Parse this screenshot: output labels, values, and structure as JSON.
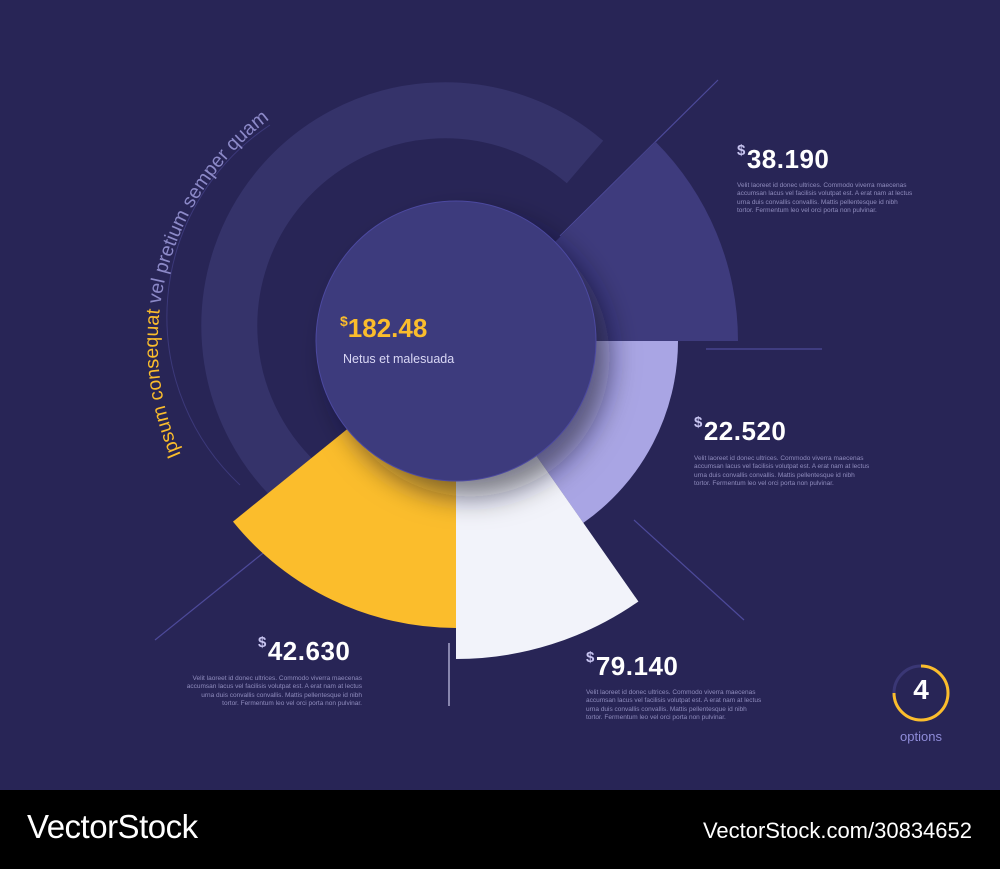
{
  "colors": {
    "background": "#282556",
    "ring": "#35336a",
    "center_circle": "#3e3b7d",
    "seg_dark": "#3e3b7d",
    "seg_light": "#a9a5e4",
    "seg_white": "#f2f3fa",
    "seg_yellow": "#fbbd2c",
    "line": "#4d4a9a",
    "accent": "#fbbd2c"
  },
  "arc_title": {
    "highlight": "Ipsum consequat",
    "rest": " vel pretium semper quam"
  },
  "center": {
    "currency": "$",
    "value": "182.48",
    "label": "Netus et malesuada"
  },
  "description_lines": [
    "Velit laoreet id donec ultrices. Commodo viverra maecenas",
    "accumsan lacus vel facilisis volutpat est. A erat nam at lectus",
    "urna duis convallis convallis. Mattis pellentesque id nibh",
    "tortor. Fermentum leo vel orci porta non pulvinar."
  ],
  "chart_data": {
    "type": "pie",
    "segments": [
      {
        "currency": "$",
        "label": "38.190",
        "value": 38.19,
        "color": "#3e3b7d"
      },
      {
        "currency": "$",
        "label": "22.520",
        "value": 22.52,
        "color": "#a9a5e4"
      },
      {
        "currency": "$",
        "label": "79.140",
        "value": 79.14,
        "color": "#f2f3fa"
      },
      {
        "currency": "$",
        "label": "42.630",
        "value": 42.63,
        "color": "#fbbd2c"
      }
    ]
  },
  "options": {
    "count": "4",
    "label": "options"
  },
  "footer": {
    "brand": "VectorStock",
    "stock_id": "VectorStock.com/30834652"
  }
}
